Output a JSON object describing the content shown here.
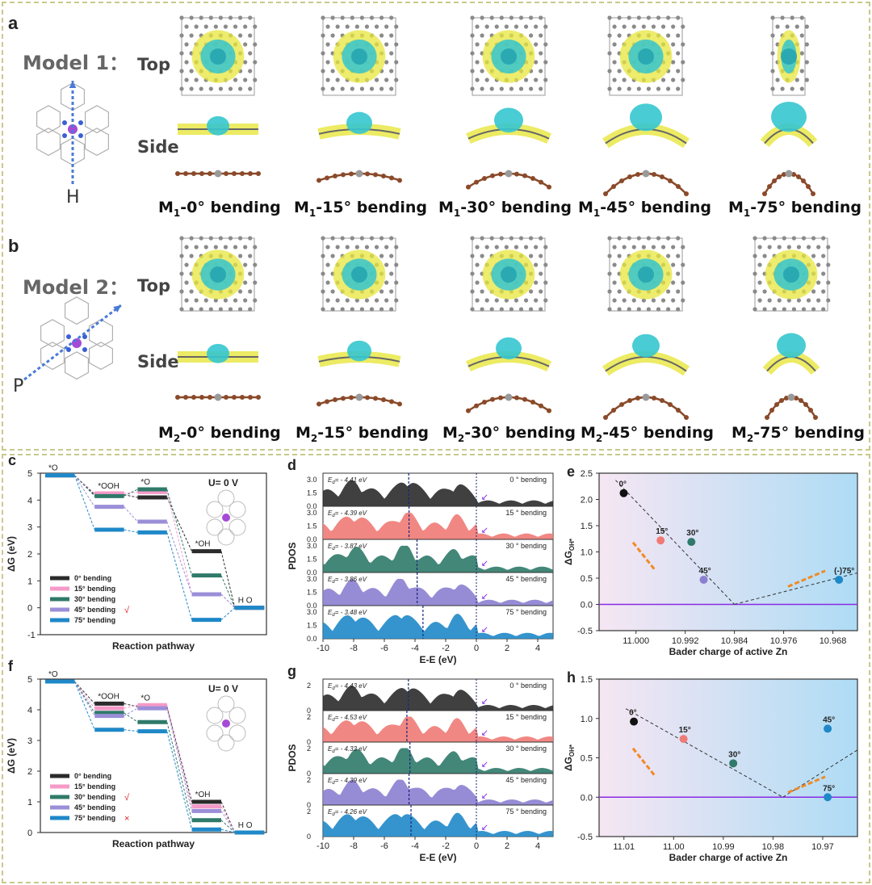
{
  "figure": {
    "panel_labels": {
      "a": "a",
      "b": "b",
      "c": "c",
      "d": "d",
      "e": "e",
      "f": "f",
      "g": "g",
      "h": "h"
    },
    "model1": {
      "title": "Model  1：",
      "top": "Top",
      "side": "Side",
      "direction": "H",
      "captions": [
        {
          "sub": "1",
          "pre": "M",
          "post": "-0° bending"
        },
        {
          "sub": "1",
          "pre": "M",
          "post": "-15° bending"
        },
        {
          "sub": "1",
          "pre": "M",
          "post": "-30° bending"
        },
        {
          "sub": "1",
          "pre": "M",
          "post": "-45° bending"
        },
        {
          "sub": "1",
          "pre": "M",
          "post": "-75° bending"
        }
      ]
    },
    "model2": {
      "title": "Model  2：",
      "top": "Top",
      "side": "Side",
      "direction": "P",
      "captions": [
        {
          "sub": "2",
          "pre": "M",
          "post": "-0° bending"
        },
        {
          "sub": "2",
          "pre": "M",
          "post": "-15° bending"
        },
        {
          "sub": "2",
          "pre": "M",
          "post": "-30° bending"
        },
        {
          "sub": "2",
          "pre": "M",
          "post": "-45° bending"
        },
        {
          "sub": "2",
          "pre": "M",
          "post": "-75° bending"
        }
      ]
    },
    "colors": {
      "cyan": "#35c6cf",
      "yellow": "#e7e63c",
      "carbon": "#8a8a8a",
      "nitrogen": "#3a5fd6",
      "zinc": "#a64ad6",
      "rod": "#8a4a2a",
      "black": "#2b2b2b",
      "pink": "#f07a75",
      "green": "#2f7a6a",
      "purple": "#8b7fd0",
      "blue": "#1f88c8",
      "orange": "#f08a24",
      "violet_line": "#8a2be2"
    }
  },
  "chart_data": [
    {
      "id": "c",
      "type": "line",
      "annotation": "U= 0 V",
      "ylabel": "ΔG (eV)",
      "xlabel": "Reaction pathway",
      "ylim": [
        -1,
        5
      ],
      "yticks": [
        -1,
        0,
        1,
        2,
        3,
        4,
        5
      ],
      "steps": [
        "*O2",
        "*OOH",
        "*O",
        "*OH",
        "H2O"
      ],
      "step_labels": [
        "*O",
        "*OOH",
        "*O",
        "*OH",
        "H O"
      ],
      "series": [
        {
          "name": "0°  bending",
          "color": "#2b2b2b",
          "values": [
            4.92,
            4.2,
            4.1,
            2.1,
            0
          ]
        },
        {
          "name": "15° bending",
          "color": "#f59ac8",
          "values": [
            4.92,
            4.25,
            4.3,
            0.5,
            0
          ]
        },
        {
          "name": "30° bending",
          "color": "#2f7a6a",
          "values": [
            4.92,
            4.15,
            4.4,
            1.2,
            0
          ]
        },
        {
          "name": "45° bending",
          "color": "#9b8fd8",
          "values": [
            4.92,
            3.75,
            3.2,
            0.5,
            0
          ]
        },
        {
          "name": "75° bending",
          "color": "#1f88c8",
          "values": [
            4.92,
            2.9,
            2.8,
            -0.45,
            0
          ]
        }
      ],
      "legend_mark": "√",
      "legend_mark_index": 3
    },
    {
      "id": "d",
      "type": "area",
      "ylabel": "PDOS",
      "xlabel": "E-E  (eV)",
      "xlim": [
        -10,
        5
      ],
      "xticks": [
        -10,
        -8,
        -6,
        -4,
        -2,
        0,
        2,
        4
      ],
      "yticks": [
        "0.0",
        "1.5",
        "3.0"
      ],
      "panels": [
        {
          "label": "0 ° bending",
          "ed": "= - 4.41 eV",
          "edv": -4.41,
          "color": "#2b2b2b"
        },
        {
          "label": "15 ° bending",
          "ed": "= - 4.39 eV",
          "edv": -4.39,
          "color": "#f07a75"
        },
        {
          "label": "30 ° bending",
          "ed": "= - 3.87 eV",
          "edv": -3.87,
          "color": "#2f7a6a"
        },
        {
          "label": "45 ° bending",
          "ed": "= - 3.86 eV",
          "edv": -3.86,
          "color": "#8b7fd0"
        },
        {
          "label": "75 ° bending",
          "ed": "= - 3.48 eV",
          "edv": -3.48,
          "color": "#1f88c8"
        }
      ]
    },
    {
      "id": "e",
      "type": "scatter",
      "ylabel": "ΔG",
      "xlabel": "Bader charge of active Zn",
      "xlim": [
        11.006,
        10.964
      ],
      "xticks": [
        "11.000",
        "10.992",
        "10.984",
        "10.976",
        "10.968"
      ],
      "xtick_values": [
        11.0,
        10.992,
        10.984,
        10.976,
        10.968
      ],
      "ylim": [
        -0.5,
        2.5
      ],
      "yticks": [
        "-0.5",
        "0.0",
        "0.5",
        "1.0",
        "1.5",
        "2.0",
        "2.5"
      ],
      "points": [
        {
          "label": "0°",
          "x": 11.002,
          "y": 2.12,
          "color": "#111111"
        },
        {
          "label": "15°",
          "x": 10.996,
          "y": 1.22,
          "color": "#f07a75"
        },
        {
          "label": "30°",
          "x": 10.991,
          "y": 1.19,
          "color": "#2f7a6a"
        },
        {
          "label": "45°",
          "x": 10.989,
          "y": 0.47,
          "color": "#8b7fd0"
        },
        {
          "label": "(-)75°",
          "x": 10.967,
          "y": 0.47,
          "color": "#1f88c8"
        }
      ],
      "min_x": 10.984
    },
    {
      "id": "f",
      "type": "line",
      "annotation": "U= 0 V",
      "ylabel": "ΔG (eV)",
      "xlabel": "Reaction pathway",
      "ylim": [
        0,
        5
      ],
      "yticks": [
        0,
        1,
        2,
        3,
        4,
        5
      ],
      "steps": [
        "*O2",
        "*OOH",
        "*O",
        "*OH",
        "H2O"
      ],
      "step_labels": [
        "*O",
        "*OOH",
        "*O",
        "*OH",
        "H O"
      ],
      "series": [
        {
          "name": "0°  bending",
          "color": "#2b2b2b",
          "values": [
            4.92,
            4.2,
            4.1,
            1.0,
            0
          ]
        },
        {
          "name": "15° bending",
          "color": "#f59ac8",
          "values": [
            4.92,
            4.05,
            4.15,
            0.85,
            0
          ]
        },
        {
          "name": "30° bending",
          "color": "#2f7a6a",
          "values": [
            4.92,
            3.9,
            3.6,
            0.4,
            0
          ]
        },
        {
          "name": "45° bending",
          "color": "#9b8fd8",
          "values": [
            4.92,
            3.8,
            4.05,
            0.7,
            0
          ]
        },
        {
          "name": "75° bending",
          "color": "#1f88c8",
          "values": [
            4.92,
            3.35,
            3.3,
            0.1,
            0
          ]
        }
      ],
      "legend_mark": "√",
      "legend_mark_index": 2,
      "legend_x_mark": "×",
      "legend_x_index": 4
    },
    {
      "id": "g",
      "type": "area",
      "ylabel": "PDOS",
      "xlabel": "E-E  (eV)",
      "xlim": [
        -10,
        5
      ],
      "xticks": [
        -10,
        -8,
        -6,
        -4,
        -2,
        0,
        2,
        4
      ],
      "yticks": [
        "0",
        "2"
      ],
      "panels": [
        {
          "label": "0 ° bending",
          "ed": "= - 4.43 eV",
          "edv": -4.43,
          "color": "#2b2b2b"
        },
        {
          "label": "15 ° bending",
          "ed": "= - 4.53 eV",
          "edv": -4.53,
          "color": "#f07a75"
        },
        {
          "label": "30 ° bending",
          "ed": "= - 4.33 eV",
          "edv": -4.33,
          "color": "#2f7a6a"
        },
        {
          "label": "45 ° bending",
          "ed": "= - 4.39 eV",
          "edv": -4.39,
          "color": "#8b7fd0"
        },
        {
          "label": "75 ° bending",
          "ed": "= - 4.26 eV",
          "edv": -4.26,
          "color": "#1f88c8"
        }
      ]
    },
    {
      "id": "h",
      "type": "scatter",
      "ylabel": "ΔG",
      "xlabel": "Bader charge of active Zn",
      "xlim": [
        11.015,
        10.963
      ],
      "xticks": [
        "11.01",
        "11.00",
        "10.99",
        "10.98",
        "10.97"
      ],
      "xtick_values": [
        11.01,
        11.0,
        10.99,
        10.98,
        10.97
      ],
      "ylim": [
        -0.5,
        1.5
      ],
      "yticks": [
        "-0.5",
        "0.0",
        "0.5",
        "1.0",
        "1.5"
      ],
      "points": [
        {
          "label": "0°",
          "x": 11.008,
          "y": 0.96,
          "color": "#111111"
        },
        {
          "label": "15°",
          "x": 10.998,
          "y": 0.74,
          "color": "#f07a75"
        },
        {
          "label": "30°",
          "x": 10.988,
          "y": 0.43,
          "color": "#2f7a6a"
        },
        {
          "label": "45°",
          "x": 10.969,
          "y": 0.87,
          "color": "#1f88c8"
        },
        {
          "label": "75°",
          "x": 10.969,
          "y": 0.0,
          "color": "#1f88c8"
        }
      ],
      "min_x": 10.978
    }
  ]
}
